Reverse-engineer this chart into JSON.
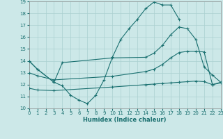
{
  "xlabel": "Humidex (Indice chaleur)",
  "bg_color": "#cce8e8",
  "line_color": "#1a7070",
  "grid_color": "#aad0d0",
  "xlim": [
    0,
    23
  ],
  "ylim": [
    10,
    19
  ],
  "xticks": [
    0,
    1,
    2,
    3,
    4,
    5,
    6,
    7,
    8,
    9,
    10,
    11,
    12,
    13,
    14,
    15,
    16,
    17,
    18,
    19,
    20,
    21,
    22,
    23
  ],
  "yticks": [
    10,
    11,
    12,
    13,
    14,
    15,
    16,
    17,
    18,
    19
  ],
  "line1_x": [
    0,
    1,
    3,
    4,
    5,
    6,
    7,
    8,
    9,
    10,
    11,
    12,
    13,
    14,
    15,
    16,
    17,
    18
  ],
  "line1_y": [
    14.0,
    13.3,
    12.2,
    11.9,
    11.1,
    10.7,
    10.4,
    11.1,
    12.4,
    14.3,
    15.8,
    16.7,
    17.5,
    18.4,
    18.95,
    18.7,
    18.7,
    17.5
  ],
  "line2_x": [
    0,
    1,
    3,
    4,
    10,
    14,
    15,
    16,
    17,
    18,
    19,
    20,
    21,
    22,
    23
  ],
  "line2_y": [
    14.0,
    13.3,
    12.2,
    13.85,
    14.25,
    14.3,
    14.65,
    15.3,
    16.2,
    16.85,
    16.7,
    15.8,
    13.5,
    12.8,
    12.2
  ],
  "line3_x": [
    0,
    1,
    3,
    10,
    14,
    15,
    16,
    17,
    18,
    19,
    20,
    21,
    22,
    23
  ],
  "line3_y": [
    13.0,
    12.75,
    12.4,
    12.7,
    13.1,
    13.3,
    13.7,
    14.25,
    14.7,
    14.8,
    14.8,
    14.75,
    12.0,
    12.2
  ],
  "line4_x": [
    0,
    1,
    3,
    10,
    14,
    15,
    16,
    17,
    18,
    19,
    20,
    21,
    22,
    23
  ],
  "line4_y": [
    11.7,
    11.55,
    11.5,
    11.8,
    12.0,
    12.05,
    12.1,
    12.15,
    12.2,
    12.25,
    12.3,
    12.25,
    12.0,
    12.15
  ]
}
